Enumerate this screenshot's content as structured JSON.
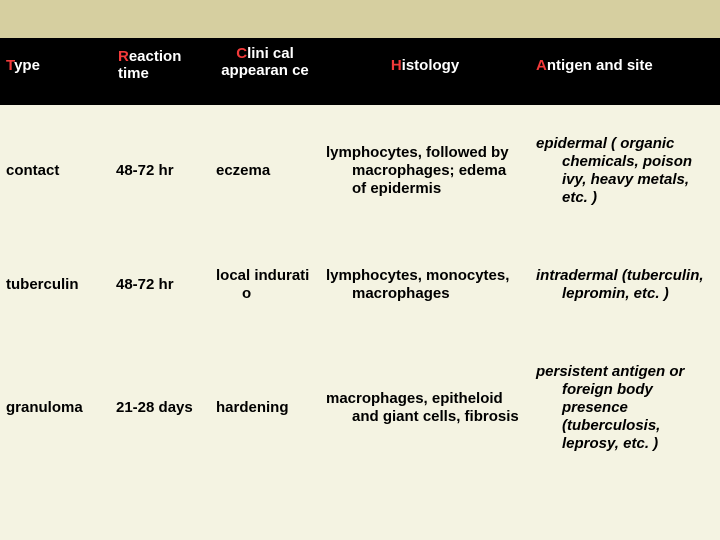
{
  "headers": {
    "type": {
      "red": "T",
      "rest": "ype"
    },
    "reaction_time": {
      "red": "R",
      "rest": "eaction time"
    },
    "clinical_appearance": {
      "red": "C",
      "rest": "lini cal appearan ce"
    },
    "histology": {
      "red": "H",
      "rest": "istology"
    },
    "antigen_site": {
      "red": "A",
      "rest": "ntigen and site"
    }
  },
  "rows": [
    {
      "type": "contact",
      "reaction_time": "48-72 hr",
      "clinical_appearance": "eczema",
      "histology": "lymphocytes, followed by macrophages; edema of epidermis",
      "antigen_site": "epidermal ( organic chemicals, poison ivy, heavy metals, etc. )"
    },
    {
      "type": "tuberculin",
      "reaction_time": "48-72 hr",
      "clinical_appearance": "local indurati o",
      "histology": "lymphocytes, monocytes, macrophages",
      "antigen_site": "intradermal (tuberculin, lepromin, etc. )"
    },
    {
      "type": "granuloma",
      "reaction_time": "21-28 days",
      "clinical_appearance": "hardening",
      "histology": "macrophages, epitheloid and giant cells, fibrosis",
      "antigen_site": "persistent antigen or foreign body presence (tuberculosis, leprosy, etc. )"
    }
  ]
}
